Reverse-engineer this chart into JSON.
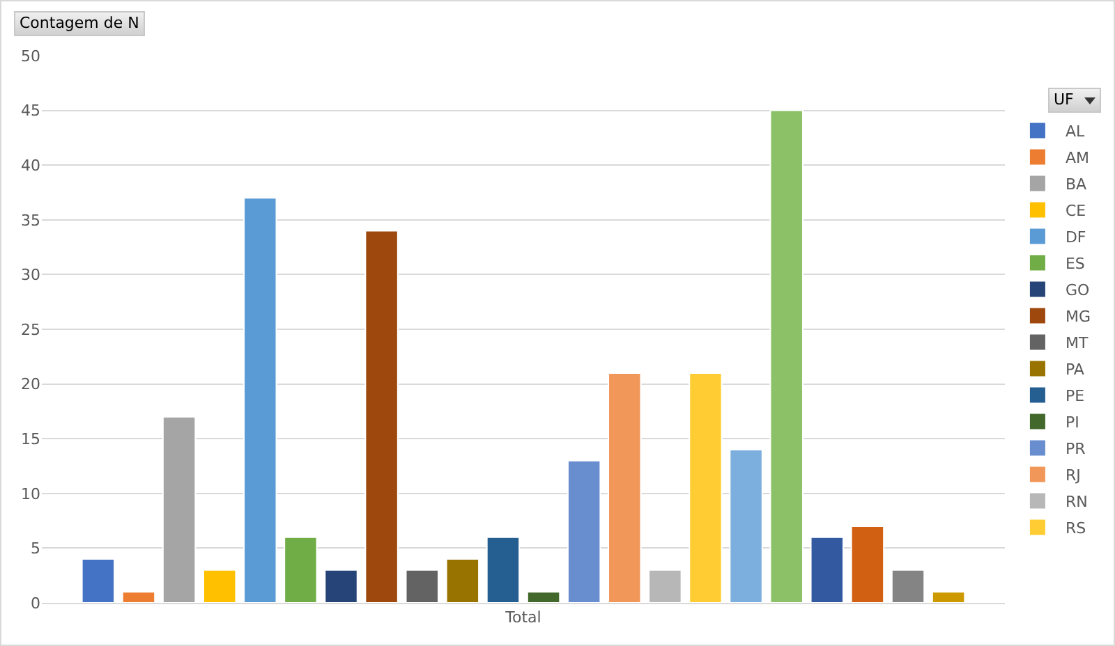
{
  "chart_data": {
    "type": "bar",
    "title": "Contagem de N",
    "legend_title": "UF",
    "categories": [
      "Total"
    ],
    "series": [
      {
        "name": "AL",
        "color": "#4472c4",
        "values": [
          4
        ]
      },
      {
        "name": "AM",
        "color": "#ed7d31",
        "values": [
          1
        ]
      },
      {
        "name": "BA",
        "color": "#a5a5a5",
        "values": [
          17
        ]
      },
      {
        "name": "CE",
        "color": "#ffc000",
        "values": [
          3
        ]
      },
      {
        "name": "DF",
        "color": "#5b9bd5",
        "values": [
          37
        ]
      },
      {
        "name": "ES",
        "color": "#70ad47",
        "values": [
          6
        ]
      },
      {
        "name": "GO",
        "color": "#264478",
        "values": [
          3
        ]
      },
      {
        "name": "MG",
        "color": "#9e480e",
        "values": [
          34
        ]
      },
      {
        "name": "MT",
        "color": "#636363",
        "values": [
          3
        ]
      },
      {
        "name": "PA",
        "color": "#997300",
        "values": [
          4
        ]
      },
      {
        "name": "PE",
        "color": "#255e91",
        "values": [
          6
        ]
      },
      {
        "name": "PI",
        "color": "#43682b",
        "values": [
          1
        ]
      },
      {
        "name": "PR",
        "color": "#698ed0",
        "values": [
          13
        ]
      },
      {
        "name": "RJ",
        "color": "#f1975a",
        "values": [
          21
        ]
      },
      {
        "name": "RN",
        "color": "#b7b7b7",
        "values": [
          3
        ]
      },
      {
        "name": "RS",
        "color": "#ffcd33",
        "values": [
          21
        ]
      },
      {
        "color": "#7cafdd",
        "values": [
          14
        ]
      },
      {
        "color": "#8cc168",
        "values": [
          45
        ]
      },
      {
        "color": "#335aa1",
        "values": [
          6
        ]
      },
      {
        "color": "#d26012",
        "values": [
          7
        ]
      },
      {
        "color": "#848484",
        "values": [
          3
        ]
      },
      {
        "color": "#cc9a00",
        "values": [
          1
        ]
      }
    ],
    "ylim": [
      0,
      50
    ],
    "yticks": [
      0,
      5,
      10,
      15,
      20,
      25,
      30,
      35,
      40,
      45,
      50
    ],
    "grid": "y",
    "legend": "right"
  }
}
